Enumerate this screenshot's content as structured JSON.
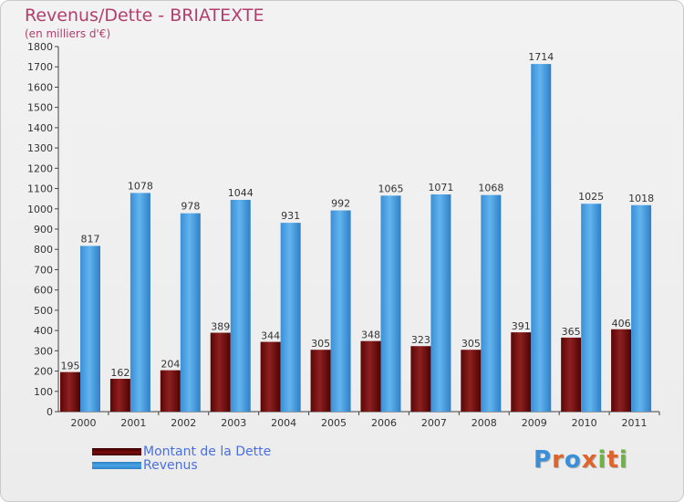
{
  "header": {
    "title": "Revenus/Dette - BRIATEXTE",
    "subtitle": "(en milliers d'€)"
  },
  "colors": {
    "title": "#b23f6a",
    "debt": "#7a0d0d",
    "revenue": "#4aa3e6",
    "legend_text": "#4a6fe0"
  },
  "chart_data": {
    "type": "bar",
    "categories": [
      "2000",
      "2001",
      "2002",
      "2003",
      "2004",
      "2005",
      "2006",
      "2007",
      "2008",
      "2009",
      "2010",
      "2011"
    ],
    "series": [
      {
        "name": "Montant de la Dette",
        "color": "#7a0d0d",
        "values": [
          195,
          162,
          204,
          389,
          344,
          305,
          348,
          323,
          305,
          391,
          365,
          406
        ]
      },
      {
        "name": "Revenus",
        "color": "#4aa3e6",
        "values": [
          817,
          1078,
          978,
          1044,
          931,
          992,
          1065,
          1071,
          1068,
          1714,
          1025,
          1018
        ]
      }
    ],
    "ylim": [
      0,
      1800
    ],
    "yticks": [
      0,
      100,
      200,
      300,
      400,
      500,
      600,
      700,
      800,
      900,
      1000,
      1100,
      1200,
      1300,
      1400,
      1500,
      1600,
      1700,
      1800
    ],
    "grid": false,
    "legend_position": "bottom-left"
  },
  "legend": {
    "items": [
      {
        "label": "Montant de la Dette",
        "color": "#7a0d0d"
      },
      {
        "label": "Revenus",
        "color": "#4aa3e6"
      }
    ]
  },
  "logo": {
    "text": "Proxiti",
    "letter_colors": [
      "#3a8fd8",
      "#e0632b",
      "#3a8fd8",
      "#e0632b",
      "#6cb33f",
      "#e0632b",
      "#6cb33f"
    ]
  }
}
